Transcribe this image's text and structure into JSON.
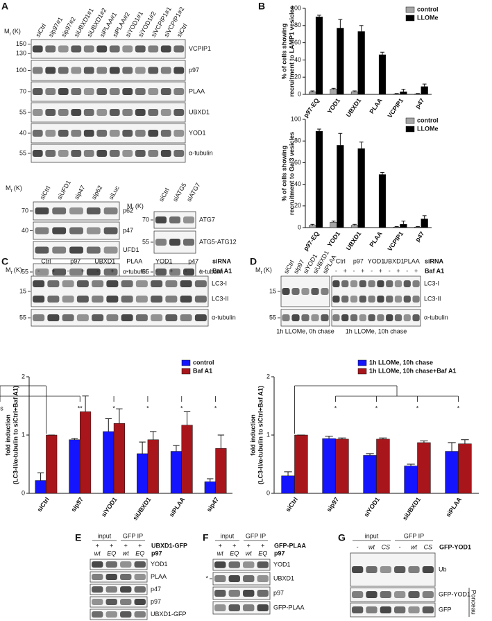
{
  "panel_labels": [
    "A",
    "B",
    "C",
    "D",
    "E",
    "F",
    "G"
  ],
  "mr": {
    "m": "M",
    "sub": "r",
    "unit": "(K)"
  },
  "blots": {
    "A1": {
      "lanes": [
        "siCtrl",
        "sip97#1",
        "sip97#2",
        "siUBXD1#1",
        "siUBXD1#2",
        "siPLAA#1",
        "siPLAA#2",
        "siYOD1#1",
        "siYOD1#2",
        "siVCPIP1#1",
        "siVCPIP1#2",
        "siCtrl"
      ],
      "rows": [
        {
          "markers": [
            150,
            130
          ],
          "names": [
            "VCPIP1"
          ]
        },
        {
          "markers": [
            100
          ],
          "names": [
            "p97"
          ]
        },
        {
          "markers": [
            70
          ],
          "names": [
            "PLAA"
          ]
        },
        {
          "markers": [
            55
          ],
          "names": [
            "UBXD1"
          ]
        },
        {
          "markers": [
            40
          ],
          "names": [
            "YOD1"
          ]
        },
        {
          "markers": [
            55
          ],
          "names": [
            "α-tubulin"
          ]
        }
      ]
    },
    "A2": {
      "lanes": [
        "siCtrl",
        "siUFD1",
        "sip47",
        "sip62",
        "siLuc"
      ],
      "rows": [
        {
          "markers": [
            70
          ],
          "names": [
            "p62"
          ]
        },
        {
          "markers": [
            40
          ],
          "names": [
            "p47"
          ]
        },
        {
          "markers": [],
          "names": [
            "UFD1"
          ]
        },
        {
          "markers": [
            55
          ],
          "names": [
            "α-tubulin"
          ]
        }
      ]
    },
    "A3": {
      "lanes": [
        "siCtrl",
        "siATG5",
        "siATG7"
      ],
      "rows": [
        {
          "markers": [
            70
          ],
          "names": [
            "ATG7"
          ]
        },
        {
          "markers": [
            55
          ],
          "names": [
            "ATG5-ATG12"
          ]
        },
        {
          "markers": [
            55
          ],
          "names": [
            "α-tubulin"
          ]
        }
      ]
    },
    "C": {
      "conditions": [
        {
          "label": "siRNA",
          "lanes": [
            "Ctrl",
            "p97",
            "UBXD1",
            "PLAA",
            "YOD1",
            "p47"
          ]
        },
        {
          "label": "Baf A1",
          "lanes": [
            "-",
            "+",
            "-",
            "+",
            "-",
            "+",
            "-",
            "+",
            "-",
            "+",
            "-",
            "+"
          ]
        }
      ],
      "rows": [
        {
          "markers": [
            15
          ],
          "names": [
            "LC3-I",
            "LC3-II"
          ]
        },
        {
          "markers": [
            55
          ],
          "names": [
            "α-tubulin"
          ]
        }
      ]
    },
    "D1": {
      "lanes": [
        "siCtrl",
        "sip97",
        "siYOD1",
        "siUBXD1",
        "siPLAA"
      ],
      "rows": [
        {
          "markers": [
            15
          ],
          "names": []
        },
        {
          "markers": [
            55
          ],
          "names": []
        }
      ],
      "caption": "1h LLOMe, 0h chase"
    },
    "D2": {
      "conditions": [
        {
          "label": "siRNA",
          "lanes": [
            "Ctrl",
            "p97",
            "YOD1",
            "UBXD1",
            "PLAA"
          ]
        },
        {
          "label": "Baf A1",
          "lanes": [
            "-",
            "+",
            "-",
            "+",
            "-",
            "+",
            "-",
            "+",
            "-",
            "+"
          ]
        }
      ],
      "rows": [
        {
          "markers": [],
          "names": [
            "LC3-I",
            "LC3-II"
          ]
        },
        {
          "markers": [],
          "names": [
            "α-tubulin"
          ]
        }
      ],
      "caption": "1h LLOMe, 10h chase"
    },
    "E": {
      "conditions": [
        {
          "lanes": [
            "input",
            "GFP IP"
          ]
        },
        {
          "label": "UBXD1-GFP",
          "lanes": [
            "+",
            "+",
            "+",
            "+"
          ]
        },
        {
          "label": "p97",
          "lanes": [
            "wt",
            "EQ",
            "wt",
            "EQ"
          ]
        }
      ],
      "rows": [
        {
          "markers": [],
          "names": [
            "YOD1"
          ]
        },
        {
          "markers": [],
          "names": [
            "PLAA"
          ]
        },
        {
          "markers": [],
          "names": [
            "p47"
          ]
        },
        {
          "markers": [],
          "names": [
            "p97"
          ]
        },
        {
          "markers": [],
          "names": [
            "UBXD1-GFP"
          ]
        }
      ]
    },
    "F": {
      "conditions": [
        {
          "lanes": [
            "input",
            "GFP IP"
          ]
        },
        {
          "label": "GFP-PLAA",
          "lanes": [
            "+",
            "+",
            "+",
            "+"
          ]
        },
        {
          "label": "p97",
          "lanes": [
            "wt",
            "EQ",
            "wt",
            "EQ"
          ]
        }
      ],
      "rows": [
        {
          "markers": [],
          "names": [
            "YOD1"
          ]
        },
        {
          "markers": [
            "*"
          ],
          "names": [
            "UBXD1"
          ]
        },
        {
          "markers": [],
          "names": [
            "p97"
          ]
        },
        {
          "markers": [],
          "names": [
            "GFP-PLAA"
          ]
        }
      ]
    },
    "G": {
      "conditions": [
        {
          "lanes": [
            "input",
            "GFP IP"
          ]
        },
        {
          "label": "GFP-YOD1",
          "lanes": [
            "-",
            "wt",
            "CS",
            "-",
            "wt",
            "CS"
          ]
        }
      ],
      "rows": [
        {
          "markers": [],
          "names": [
            "Ub"
          ]
        },
        {
          "markers": [],
          "names": [
            "GFP-YOD1"
          ]
        },
        {
          "markers": [],
          "names": [
            "GFP"
          ]
        }
      ],
      "side_label": "Ponceau"
    }
  },
  "chart_data": [
    {
      "type": "bar",
      "y_label": [
        "% of cells showing",
        "recruitment to LAMP1 vesicles"
      ],
      "categories": [
        "p97-EQ",
        "YOD1",
        "UBXD1",
        "PLAA",
        "VCPIP1",
        "p47"
      ],
      "series": [
        {
          "name": "control",
          "color": "#a6a6a6",
          "values": [
            3,
            6,
            3,
            0,
            0.5,
            0.5
          ],
          "errors": [
            1,
            1,
            1,
            0,
            0.5,
            0.5
          ]
        },
        {
          "name": "LLOMe",
          "color": "#000000",
          "values": [
            90,
            77,
            73,
            46,
            3,
            9
          ],
          "errors": [
            2,
            10,
            7,
            3,
            3,
            3
          ]
        }
      ],
      "ylim": [
        0,
        100
      ],
      "yticks": [
        0,
        20,
        40,
        60,
        80,
        100
      ],
      "legend": "top-right"
    },
    {
      "type": "bar",
      "y_label": [
        "% of cells showing",
        "recruitment to Gal3 vesicles"
      ],
      "categories": [
        "p97-EQ",
        "YOD1",
        "UBXD1",
        "PLAA",
        "VCPIP1",
        "p47"
      ],
      "series": [
        {
          "name": "control",
          "color": "#a6a6a6",
          "values": [
            2,
            5,
            2,
            0,
            0.5,
            0.5
          ],
          "errors": [
            1,
            1,
            1,
            0,
            0.5,
            0.5
          ]
        },
        {
          "name": "LLOMe",
          "color": "#000000",
          "values": [
            89,
            76,
            73,
            49,
            3,
            8
          ],
          "errors": [
            2,
            11,
            6,
            2,
            3,
            3
          ]
        }
      ],
      "ylim": [
        0,
        100
      ],
      "yticks": [
        0,
        20,
        40,
        60,
        80,
        100
      ],
      "legend": "top-right"
    },
    {
      "type": "bar",
      "y_label": [
        "fold induction",
        "(LC3-II/α-tubulin to siCtrl+Baf A1)"
      ],
      "categories": [
        "siCtrl",
        "sip97",
        "siYOD1",
        "siUBXD1",
        "siPLAA",
        "sip47"
      ],
      "series": [
        {
          "name": "control",
          "color": "#1414ff",
          "values": [
            0.22,
            0.92,
            1.06,
            0.68,
            0.72,
            0.2
          ],
          "errors": [
            0.13,
            0.02,
            0.22,
            0.2,
            0.1,
            0.05
          ]
        },
        {
          "name": "Baf A1",
          "color": "#a8161c",
          "values": [
            1.0,
            1.4,
            1.2,
            0.92,
            1.17,
            0.77
          ],
          "errors": [
            0,
            0.27,
            0.25,
            0.14,
            0.23,
            0.23
          ]
        }
      ],
      "significance": [
        "**",
        "*",
        "*",
        "*",
        "*",
        "ns"
      ],
      "ylim": [
        0,
        2
      ],
      "yticks": [
        0,
        1,
        2
      ],
      "legend": "top-right"
    },
    {
      "type": "bar",
      "y_label": [
        "fold induction",
        "(LC3-II/α-tubulin to siCtrl+Baf A1)"
      ],
      "categories": [
        "siCtrl",
        "sip97",
        "siYOD1",
        "siUBXD1",
        "siPLAA"
      ],
      "series": [
        {
          "name": "1h LLOMe, 10h chase",
          "color": "#1414ff",
          "values": [
            0.3,
            0.94,
            0.65,
            0.47,
            0.72
          ],
          "errors": [
            0.07,
            0.04,
            0.03,
            0.03,
            0.15
          ]
        },
        {
          "name": "1h LLOMe, 10h chase+Baf A1",
          "color": "#a8161c",
          "values": [
            1.0,
            0.93,
            0.93,
            0.87,
            0.85
          ],
          "errors": [
            0,
            0.02,
            0.02,
            0.03,
            0.07
          ]
        }
      ],
      "significance": [
        "*",
        "*",
        "*",
        "*"
      ],
      "ylim": [
        0,
        2
      ],
      "yticks": [
        0,
        1,
        2
      ],
      "legend": "top-right"
    }
  ]
}
